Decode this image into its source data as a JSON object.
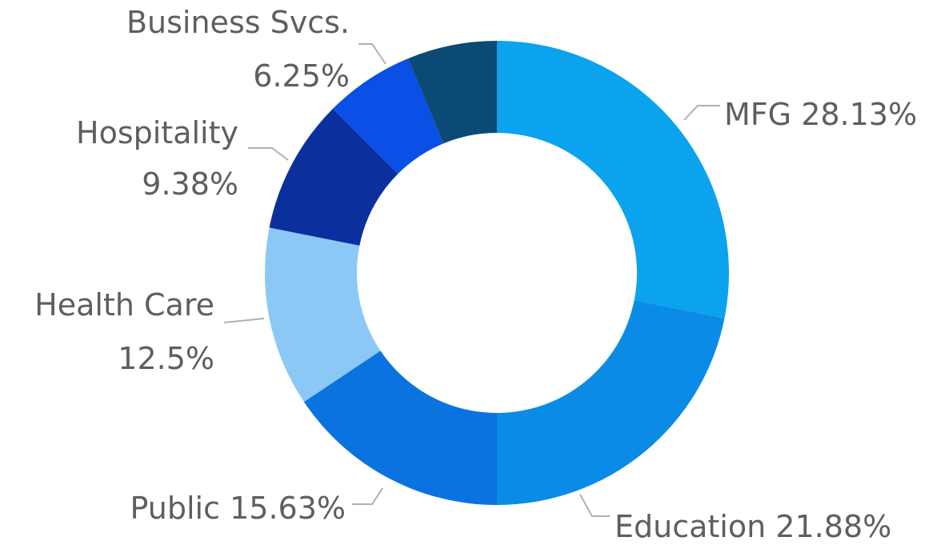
{
  "chart_data": {
    "type": "donut",
    "categories": [
      "MFG",
      "Education",
      "Public",
      "Health Care",
      "Hospitality",
      "Business Svcs.",
      null
    ],
    "values": [
      28.13,
      21.88,
      15.63,
      12.5,
      9.38,
      6.25,
      6.25
    ],
    "value_labels": [
      "28.13%",
      "21.88%",
      "15.63%",
      "12.5%",
      "9.38%",
      "6.25%",
      null
    ],
    "colors": [
      "#0ba2ee",
      "#0a8ce6",
      "#0b73e0",
      "#8cc8f5",
      "#0c2f9e",
      "#0a4fe6",
      "#0b4a74"
    ]
  }
}
